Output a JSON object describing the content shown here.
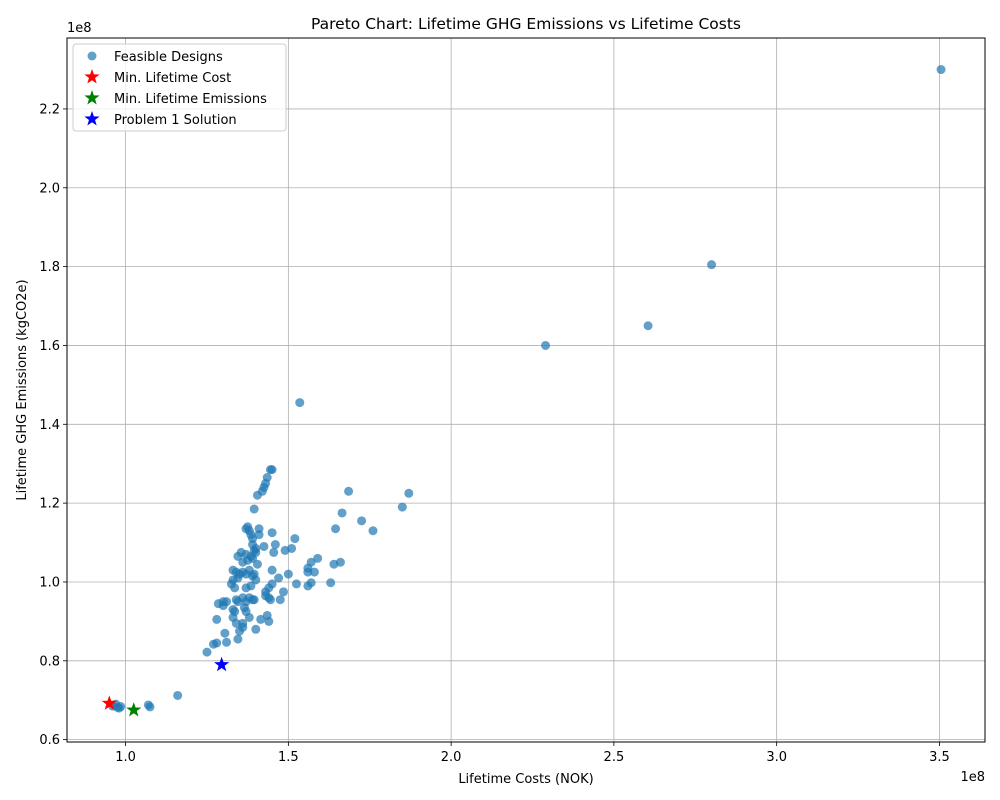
{
  "chart_data": {
    "type": "scatter",
    "title": "Pareto Chart: Lifetime GHG Emissions vs Lifetime Costs",
    "xlabel": "Lifetime Costs (NOK)",
    "ylabel": "Lifetime GHG Emissions (kgCO2e)",
    "x_offset_label": "1e8",
    "y_offset_label": "1e8",
    "xlim": [
      0.82,
      3.64
    ],
    "ylim": [
      0.594,
      2.38
    ],
    "x_ticks": [
      1.0,
      1.5,
      2.0,
      2.5,
      3.0,
      3.5
    ],
    "x_tick_labels": [
      "1.0",
      "1.5",
      "2.0",
      "2.5",
      "3.0",
      "3.5"
    ],
    "y_ticks": [
      0.6,
      0.8,
      1.0,
      1.2,
      1.4,
      1.6,
      1.8,
      2.0,
      2.2
    ],
    "y_tick_labels": [
      "0.6",
      "0.8",
      "1.0",
      "1.2",
      "1.4",
      "1.6",
      "1.8",
      "2.0",
      "2.2"
    ],
    "grid": true,
    "legend_position": "top-left",
    "colors": {
      "feasible": "#1f77b4",
      "min_cost": "#ff0000",
      "min_emissions": "#008000",
      "problem1": "#0000ff"
    },
    "series": [
      {
        "name": "Feasible Designs",
        "marker": "circle",
        "color": "#1f77b4",
        "points": [
          [
            0.97,
            0.69
          ],
          [
            0.98,
            0.68
          ],
          [
            0.96,
            0.685
          ],
          [
            0.975,
            0.682
          ],
          [
            0.985,
            0.684
          ],
          [
            1.07,
            0.688
          ],
          [
            1.075,
            0.683
          ],
          [
            1.16,
            0.712
          ],
          [
            1.25,
            0.822
          ],
          [
            1.27,
            0.842
          ],
          [
            1.28,
            0.845
          ],
          [
            1.31,
            0.847
          ],
          [
            1.28,
            0.905
          ],
          [
            1.3,
            0.95
          ],
          [
            1.3,
            0.94
          ],
          [
            1.31,
            0.95
          ],
          [
            1.285,
            0.945
          ],
          [
            1.305,
            0.87
          ],
          [
            1.33,
            0.91
          ],
          [
            1.335,
            0.925
          ],
          [
            1.345,
            0.855
          ],
          [
            1.35,
            0.875
          ],
          [
            1.33,
            0.93
          ],
          [
            1.34,
            0.895
          ],
          [
            1.36,
            0.885
          ],
          [
            1.36,
            0.895
          ],
          [
            1.365,
            0.935
          ],
          [
            1.37,
            0.925
          ],
          [
            1.38,
            0.91
          ],
          [
            1.4,
            0.88
          ],
          [
            1.415,
            0.905
          ],
          [
            1.435,
            0.915
          ],
          [
            1.44,
            0.9
          ],
          [
            1.34,
            0.955
          ],
          [
            1.345,
            0.95
          ],
          [
            1.36,
            0.96
          ],
          [
            1.37,
            0.95
          ],
          [
            1.38,
            0.96
          ],
          [
            1.39,
            0.955
          ],
          [
            1.395,
            0.955
          ],
          [
            1.43,
            0.965
          ],
          [
            1.44,
            0.96
          ],
          [
            1.445,
            0.955
          ],
          [
            1.475,
            0.955
          ],
          [
            1.43,
            0.975
          ],
          [
            1.44,
            0.985
          ],
          [
            1.45,
            0.995
          ],
          [
            1.325,
            0.995
          ],
          [
            1.335,
            0.985
          ],
          [
            1.37,
            0.985
          ],
          [
            1.385,
            0.99
          ],
          [
            1.47,
            1.01
          ],
          [
            1.485,
            0.975
          ],
          [
            1.525,
            0.995
          ],
          [
            1.56,
            0.99
          ],
          [
            1.57,
            0.998
          ],
          [
            1.63,
            0.998
          ],
          [
            1.33,
            1.005
          ],
          [
            1.34,
            1.025
          ],
          [
            1.345,
            1.01
          ],
          [
            1.35,
            1.02
          ],
          [
            1.36,
            1.025
          ],
          [
            1.37,
            1.02
          ],
          [
            1.38,
            1.03
          ],
          [
            1.39,
            1.015
          ],
          [
            1.395,
            1.02
          ],
          [
            1.4,
            1.005
          ],
          [
            1.45,
            1.03
          ],
          [
            1.5,
            1.02
          ],
          [
            1.56,
            1.025
          ],
          [
            1.56,
            1.035
          ],
          [
            1.58,
            1.025
          ],
          [
            1.64,
            1.045
          ],
          [
            1.66,
            1.05
          ],
          [
            1.57,
            1.05
          ],
          [
            1.59,
            1.06
          ],
          [
            1.33,
            1.03
          ],
          [
            1.345,
            1.065
          ],
          [
            1.355,
            1.075
          ],
          [
            1.36,
            1.05
          ],
          [
            1.375,
            1.055
          ],
          [
            1.385,
            1.065
          ],
          [
            1.39,
            1.06
          ],
          [
            1.4,
            1.075
          ],
          [
            1.405,
            1.045
          ],
          [
            1.395,
            1.08
          ],
          [
            1.4,
            1.085
          ],
          [
            1.37,
            1.07
          ],
          [
            1.455,
            1.075
          ],
          [
            1.49,
            1.08
          ],
          [
            1.51,
            1.085
          ],
          [
            1.46,
            1.095
          ],
          [
            1.39,
            1.095
          ],
          [
            1.39,
            1.11
          ],
          [
            1.385,
            1.12
          ],
          [
            1.38,
            1.13
          ],
          [
            1.37,
            1.135
          ],
          [
            1.375,
            1.14
          ],
          [
            1.41,
            1.12
          ],
          [
            1.41,
            1.135
          ],
          [
            1.425,
            1.09
          ],
          [
            1.45,
            1.125
          ],
          [
            1.52,
            1.11
          ],
          [
            1.645,
            1.135
          ],
          [
            1.665,
            1.175
          ],
          [
            1.725,
            1.155
          ],
          [
            1.76,
            1.13
          ],
          [
            1.85,
            1.19
          ],
          [
            1.87,
            1.225
          ],
          [
            1.685,
            1.23
          ],
          [
            1.395,
            1.185
          ],
          [
            1.405,
            1.22
          ],
          [
            1.42,
            1.23
          ],
          [
            1.425,
            1.24
          ],
          [
            1.43,
            1.25
          ],
          [
            1.435,
            1.265
          ],
          [
            1.445,
            1.285
          ],
          [
            1.45,
            1.285
          ],
          [
            1.535,
            1.455
          ],
          [
            2.29,
            1.6
          ],
          [
            2.605,
            1.65
          ],
          [
            2.8,
            1.805
          ],
          [
            3.505,
            2.3
          ]
        ]
      },
      {
        "name": "Min. Lifetime Cost",
        "marker": "star",
        "color": "#ff0000",
        "points": [
          [
            0.95,
            0.692
          ]
        ]
      },
      {
        "name": "Min. Lifetime Emissions",
        "marker": "star",
        "color": "#008000",
        "points": [
          [
            1.025,
            0.675
          ]
        ]
      },
      {
        "name": "Problem 1 Solution",
        "marker": "star",
        "color": "#0000ff",
        "points": [
          [
            1.295,
            0.79
          ]
        ]
      }
    ]
  }
}
